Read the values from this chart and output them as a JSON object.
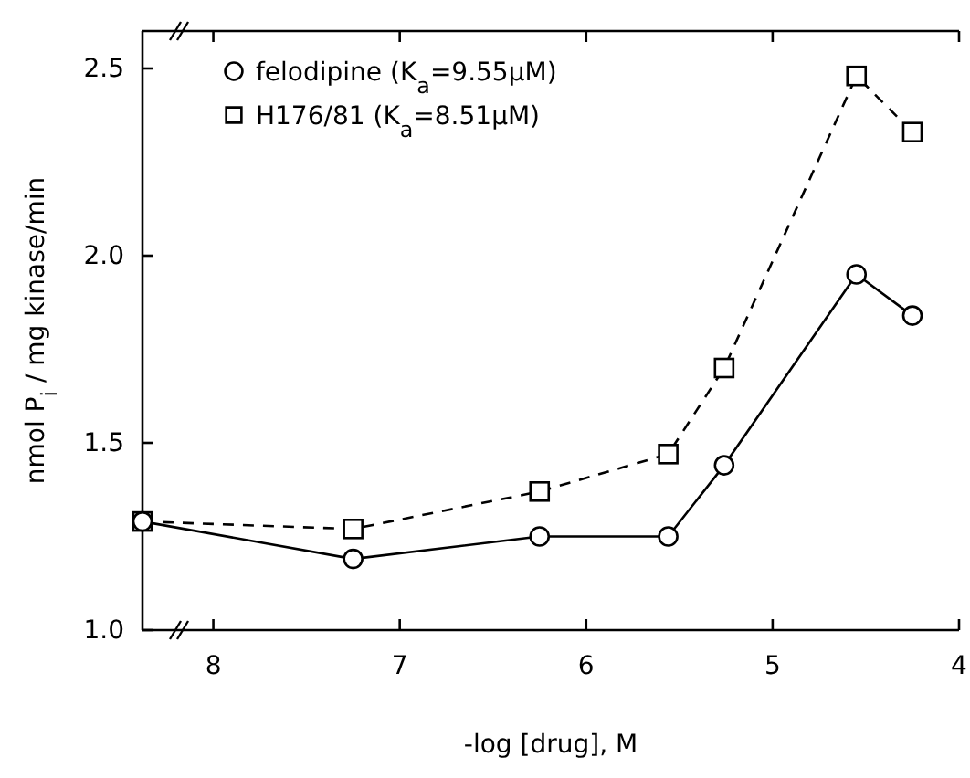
{
  "chart_data": {
    "type": "line",
    "xlabel": "-log [drug], M",
    "ylabel": "nmol P$_{i}$ / mg kinase/min",
    "xlim": [
      8.38,
      4
    ],
    "xticks": [
      8,
      7,
      6,
      5,
      4
    ],
    "ylim": [
      1.0,
      2.6
    ],
    "yticks": [
      {
        "value": 1.0,
        "label": "1.0"
      },
      {
        "value": 1.5,
        "label": "1.5"
      },
      {
        "value": 2.0,
        "label": "2.0"
      },
      {
        "value": 2.5,
        "label": "2.5"
      }
    ],
    "grid": false,
    "legend": "top left",
    "series": [
      {
        "name": "felodipine (K$_{a}$=9.55μM)",
        "color": "#000000",
        "marker": "circle",
        "line_style": "solid",
        "x": [
          8.38,
          7.25,
          6.25,
          5.56,
          5.26,
          4.55,
          4.25
        ],
        "values": [
          1.29,
          1.19,
          1.25,
          1.25,
          1.44,
          1.95,
          1.84
        ]
      },
      {
        "name": "H176/81 (K$_{a}$=8.51μM)",
        "color": "#000000",
        "marker": "square",
        "line_style": "dashed",
        "x": [
          8.38,
          7.25,
          6.25,
          5.56,
          5.26,
          4.55,
          4.25
        ],
        "values": [
          1.29,
          1.27,
          1.37,
          1.47,
          1.7,
          2.48,
          2.33
        ]
      }
    ]
  }
}
